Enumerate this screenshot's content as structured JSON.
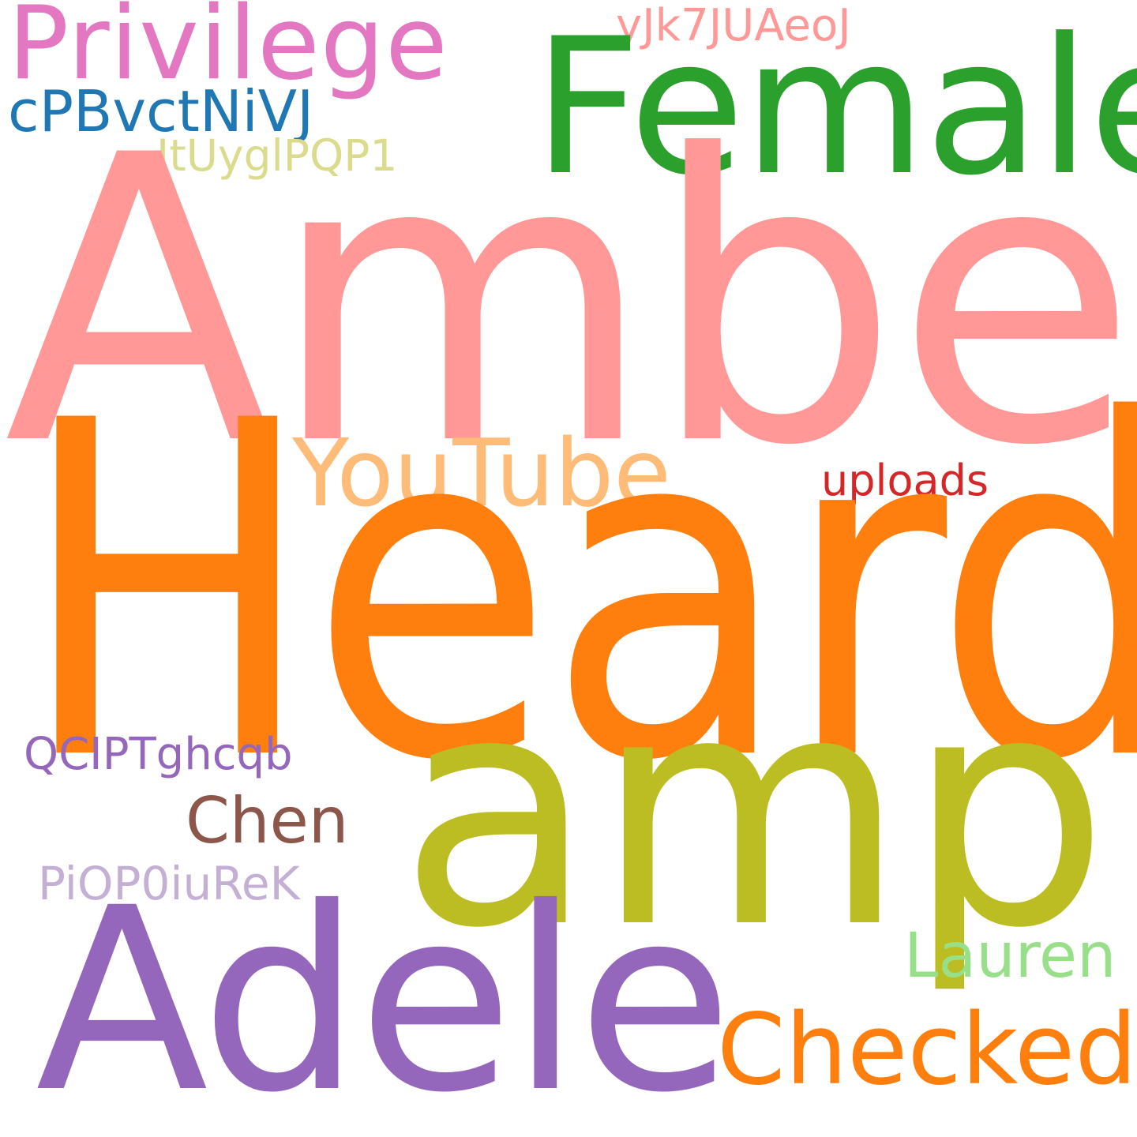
{
  "words": {
    "amber": {
      "text": "Amber",
      "color": "#ff9896"
    },
    "heard": {
      "text": "Heard",
      "color": "#ff7f0e"
    },
    "amp": {
      "text": "amp",
      "color": "#bcbd22"
    },
    "adele": {
      "text": "Adele",
      "color": "#9467bd"
    },
    "female": {
      "text": "Female",
      "color": "#2ca02c"
    },
    "privilege": {
      "text": "Privilege",
      "color": "#e377c2"
    },
    "cpbvctnivj": {
      "text": "cPBvctNiVJ",
      "color": "#1f77b4"
    },
    "jtuyglpqp1": {
      "text": "JtUyglPQP1",
      "color": "#dbdb8d"
    },
    "yjk7juaeoj": {
      "text": "yJk7JUAeoJ",
      "color": "#ff9896"
    },
    "youtube": {
      "text": "YouTube",
      "color": "#ffbb78"
    },
    "uploads": {
      "text": "uploads",
      "color": "#d62728"
    },
    "qciptghcqb": {
      "text": "QCIPTghcqb",
      "color": "#9467bd"
    },
    "chen": {
      "text": "Chen",
      "color": "#8c564b"
    },
    "piop0iurek": {
      "text": "PiOP0iuReK",
      "color": "#c5b0d5"
    },
    "lauren": {
      "text": "Lauren",
      "color": "#98df8a"
    },
    "checked": {
      "text": "Checked",
      "color": "#ff7f0e"
    }
  }
}
